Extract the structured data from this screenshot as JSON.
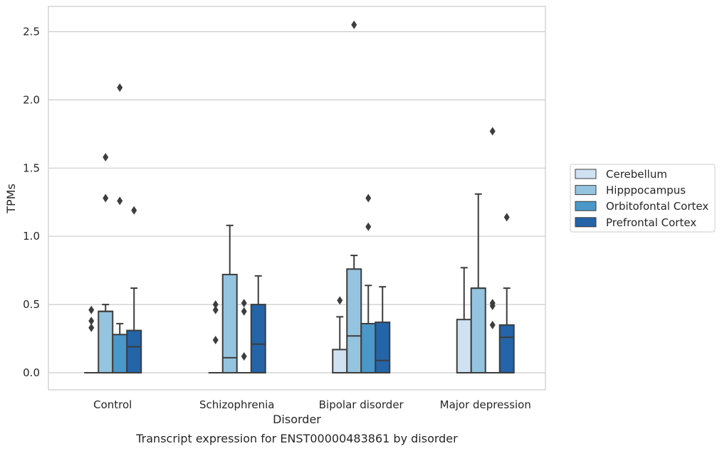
{
  "chart_data": {
    "type": "box",
    "xlabel": "Disorder",
    "ylabel": "TPMs",
    "caption": "Transcript expression for ENST00000483861 by disorder",
    "ylim": [
      -0.12,
      2.68
    ],
    "yticks": [
      0.0,
      0.5,
      1.0,
      1.5,
      2.0,
      2.5
    ],
    "ytick_labels": [
      "0.0",
      "0.5",
      "1.0",
      "1.5",
      "2.0",
      "2.5"
    ],
    "grid": "horizontal",
    "legend_position": "right",
    "categories": [
      "Control",
      "Schizophrenia",
      "Bipolar disorder",
      "Major depression"
    ],
    "series": [
      {
        "name": "Cerebellum",
        "color": "#d0e1f2",
        "boxes": [
          {
            "q1": 0,
            "median": 0,
            "q3": 0,
            "whisker_low": 0,
            "whisker_high": 0,
            "outliers": [
              0.33,
              0.38,
              0.46
            ]
          },
          {
            "q1": 0,
            "median": 0,
            "q3": 0,
            "whisker_low": 0,
            "whisker_high": 0,
            "outliers": [
              0.24,
              0.46,
              0.5
            ]
          },
          {
            "q1": 0,
            "median": 0,
            "q3": 0.17,
            "whisker_low": 0,
            "whisker_high": 0.41,
            "outliers": [
              0.53
            ]
          },
          {
            "q1": 0,
            "median": 0,
            "q3": 0.39,
            "whisker_low": 0,
            "whisker_high": 0.77,
            "outliers": []
          }
        ]
      },
      {
        "name": "Hipppocampus",
        "color": "#94c4df",
        "boxes": [
          {
            "q1": 0,
            "median": 0.45,
            "q3": 0.45,
            "whisker_low": 0,
            "whisker_high": 0.5,
            "outliers": [
              1.28,
              1.58
            ]
          },
          {
            "q1": 0,
            "median": 0.11,
            "q3": 0.72,
            "whisker_low": 0,
            "whisker_high": 1.08,
            "outliers": []
          },
          {
            "q1": 0,
            "median": 0.27,
            "q3": 0.76,
            "whisker_low": 0,
            "whisker_high": 0.86,
            "outliers": [
              2.55
            ]
          },
          {
            "q1": 0,
            "median": 0.62,
            "q3": 0.62,
            "whisker_low": 0,
            "whisker_high": 1.31,
            "outliers": []
          }
        ]
      },
      {
        "name": "Orbitofontal Cortex",
        "color": "#4a98c9",
        "boxes": [
          {
            "q1": 0,
            "median": 0,
            "q3": 0.28,
            "whisker_low": 0,
            "whisker_high": 0.36,
            "outliers": [
              1.26,
              2.09
            ]
          },
          {
            "q1": 0,
            "median": 0,
            "q3": 0,
            "whisker_low": 0,
            "whisker_high": 0,
            "outliers": [
              0.12,
              0.45,
              0.51
            ]
          },
          {
            "q1": 0,
            "median": 0,
            "q3": 0.36,
            "whisker_low": 0,
            "whisker_high": 0.64,
            "outliers": [
              1.07,
              1.28
            ]
          },
          {
            "q1": 0,
            "median": 0,
            "q3": 0,
            "whisker_low": 0,
            "whisker_high": 0,
            "outliers": [
              0.35,
              0.49,
              0.51,
              1.77
            ]
          }
        ]
      },
      {
        "name": "Prefrontal Cortex",
        "color": "#2464a8",
        "boxes": [
          {
            "q1": 0,
            "median": 0.19,
            "q3": 0.31,
            "whisker_low": 0,
            "whisker_high": 0.62,
            "outliers": [
              1.19
            ]
          },
          {
            "q1": 0,
            "median": 0.21,
            "q3": 0.5,
            "whisker_low": 0,
            "whisker_high": 0.71,
            "outliers": []
          },
          {
            "q1": 0,
            "median": 0.09,
            "q3": 0.37,
            "whisker_low": 0,
            "whisker_high": 0.63,
            "outliers": []
          },
          {
            "q1": 0,
            "median": 0.26,
            "q3": 0.35,
            "whisker_low": 0,
            "whisker_high": 0.62,
            "outliers": [
              1.14
            ]
          }
        ]
      }
    ]
  }
}
